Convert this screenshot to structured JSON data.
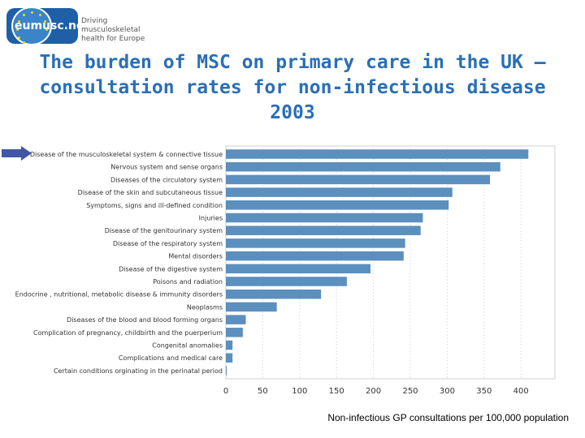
{
  "logo": {
    "name": "eumusc.net",
    "tagline_1": "Driving musculoskeletal",
    "tagline_2": "health for Europe"
  },
  "title": "The burden of MSC on primary care in the UK – consultation rates for non-infectious disease 2003",
  "caption": "Non-infectious GP consultations per 100,000 population",
  "colors": {
    "bar": "#5b8fbe",
    "title": "#2a6fb5",
    "arrow": "#3f57a6"
  },
  "chart_data": {
    "type": "bar",
    "orientation": "horizontal",
    "categories": [
      "Disease of the musculoskeletal system & connective tissue",
      "Nervous system and sense organs",
      "Diseases of the circulatory system",
      "Disease of the skin and subcutaneous tissue",
      "Symptoms, signs and ill-defined condition",
      "Injuries",
      "Disease of the genitourinary system",
      "Disease of the respiratory system",
      "Mental disorders",
      "Disease of the digestive system",
      "Poisons and radiation",
      "Endocrine , nutritional, metabolic disease & immunity disorders",
      "Neoplasms",
      "Diseases of the blood and blood forming organs",
      "Complication of pregnancy, childbirth and the puerperium",
      "Congenital anomalies",
      "Complications and medical care",
      "Certain conditions orginating in the perinatal period"
    ],
    "values": [
      410,
      372,
      358,
      307,
      302,
      267,
      264,
      243,
      241,
      196,
      164,
      129,
      69,
      27,
      23,
      9,
      9,
      1
    ],
    "xticks": [
      0,
      50,
      100,
      150,
      200,
      250,
      300,
      350,
      400
    ],
    "xlim": [
      0,
      450
    ],
    "xlabel": "Non-infectious GP consultations per 100,000 population",
    "highlight": "Disease of the musculoskeletal system & connective tissue"
  }
}
